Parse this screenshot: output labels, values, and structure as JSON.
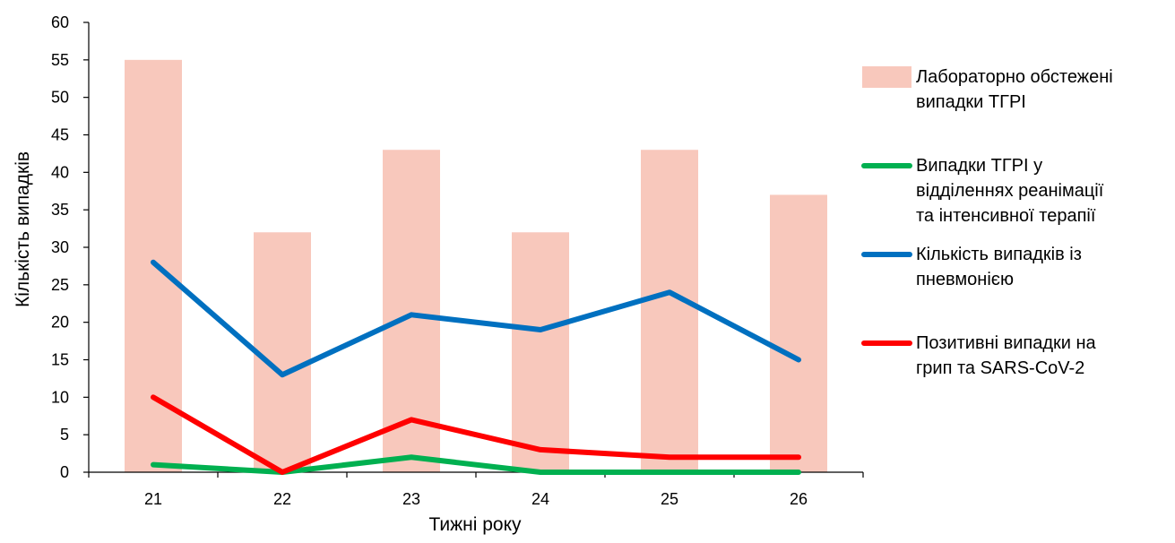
{
  "chart_data": {
    "type": "bar",
    "title": "",
    "xlabel": "Тижні року",
    "ylabel": "Кількість випадків",
    "categories": [
      "21",
      "22",
      "23",
      "24",
      "25",
      "26"
    ],
    "ylim": [
      0,
      60
    ],
    "yticks": [
      "0",
      "5",
      "10",
      "15",
      "20",
      "25",
      "30",
      "35",
      "40",
      "45",
      "50",
      "55",
      "60"
    ],
    "grid": false,
    "legend_position": "right",
    "series": [
      {
        "name": "Лабораторно обстежені випадки ТГРІ",
        "legend_lines": [
          "Лабораторно обстежені",
          "випадки ТГРІ"
        ],
        "type": "bar",
        "color": "#F8C8BC",
        "values": [
          55,
          32,
          43,
          32,
          43,
          37
        ]
      },
      {
        "name": "Випадки ТГРІ у відділеннях реанімації та інтенсивної терапії",
        "legend_lines": [
          "Випадки ТГРІ у",
          "відділеннях реанімації",
          "та  інтенсивної терапії"
        ],
        "type": "line",
        "color": "#00B050",
        "values": [
          1,
          0,
          2,
          0,
          0,
          0
        ]
      },
      {
        "name": "Кількість випадків із пневмонією",
        "legend_lines": [
          "Кількість випадків із",
          "пневмонією"
        ],
        "type": "line",
        "color": "#0070C0",
        "values": [
          28,
          13,
          21,
          19,
          24,
          15
        ]
      },
      {
        "name": "Позитивні випадки на грип та SARS-CoV-2",
        "legend_lines": [
          "Позитивні випадки на",
          "грип та SARS-CoV-2"
        ],
        "type": "line",
        "color": "#FF0000",
        "values": [
          10,
          0,
          7,
          3,
          2,
          2
        ]
      }
    ]
  }
}
